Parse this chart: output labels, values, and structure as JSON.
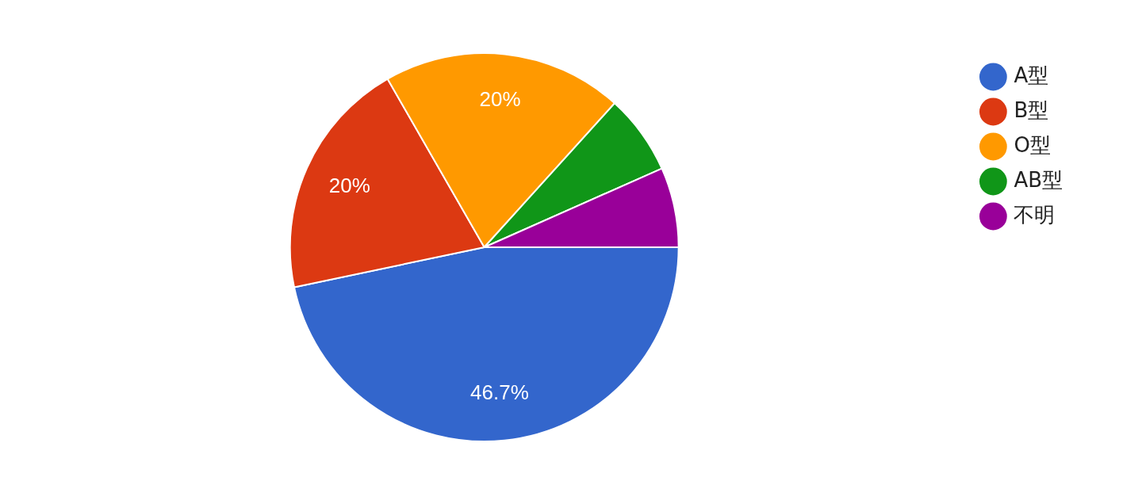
{
  "chart_data": {
    "type": "pie",
    "categories": [
      "A型",
      "B型",
      "O型",
      "AB型",
      "不明"
    ],
    "values": [
      46.7,
      20,
      20,
      6.65,
      6.65
    ],
    "colors": [
      "#3366cc",
      "#dc3912",
      "#ff9900",
      "#109618",
      "#990099"
    ],
    "value_labels": [
      "46.7%",
      "20%",
      "20%",
      null,
      null
    ],
    "legend": "top right"
  }
}
